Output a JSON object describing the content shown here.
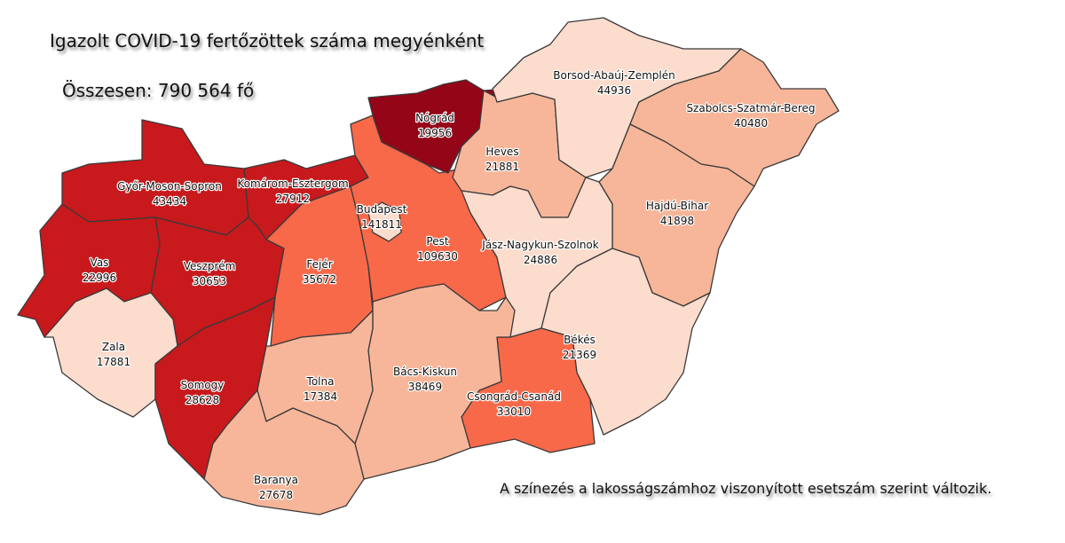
{
  "title": "Igazolt COVID-19 fertőzöttek száma megyénként",
  "total": "Összesen: 790 564 fő",
  "note": "A színezés a lakosságszámhoz viszonyított esetszám szerint változik.",
  "colors": {
    "darkest": "#940518",
    "dark": "#c8191d",
    "medium": "#f8694a",
    "light": "#f7b699",
    "lightest": "#fcdccc"
  },
  "counties": [
    {
      "name": "Győr-Moson-Sopron",
      "value": "43434",
      "shade": "dark"
    },
    {
      "name": "Komárom-Esztergom",
      "value": "27912",
      "shade": "dark"
    },
    {
      "name": "Vas",
      "value": "22996",
      "shade": "dark"
    },
    {
      "name": "Veszprém",
      "value": "30653",
      "shade": "dark"
    },
    {
      "name": "Zala",
      "value": "17881",
      "shade": "lightest"
    },
    {
      "name": "Somogy",
      "value": "28628",
      "shade": "dark"
    },
    {
      "name": "Fejér",
      "value": "35672",
      "shade": "medium"
    },
    {
      "name": "Pest",
      "value": "109630",
      "shade": "medium"
    },
    {
      "name": "Budapest",
      "value": "141811",
      "shade": "lightest"
    },
    {
      "name": "Nógrád",
      "value": "19956",
      "shade": "darkest"
    },
    {
      "name": "Heves",
      "value": "21881",
      "shade": "light"
    },
    {
      "name": "Borsod-Abaúj-Zemplén",
      "value": "44936",
      "shade": "lightest"
    },
    {
      "name": "Szabolcs-Szatmár-Bereg",
      "value": "40480",
      "shade": "light"
    },
    {
      "name": "Hajdú-Bihar",
      "value": "41898",
      "shade": "light"
    },
    {
      "name": "Jász-Nagykun-Szolnok",
      "value": "24886",
      "shade": "lightest"
    },
    {
      "name": "Békés",
      "value": "21369",
      "shade": "lightest"
    },
    {
      "name": "Csongrád-Csanád",
      "value": "33010",
      "shade": "medium"
    },
    {
      "name": "Bács-Kiskun",
      "value": "38469",
      "shade": "light"
    },
    {
      "name": "Tolna",
      "value": "17384",
      "shade": "light"
    },
    {
      "name": "Baranya",
      "value": "27678",
      "shade": "light"
    }
  ]
}
